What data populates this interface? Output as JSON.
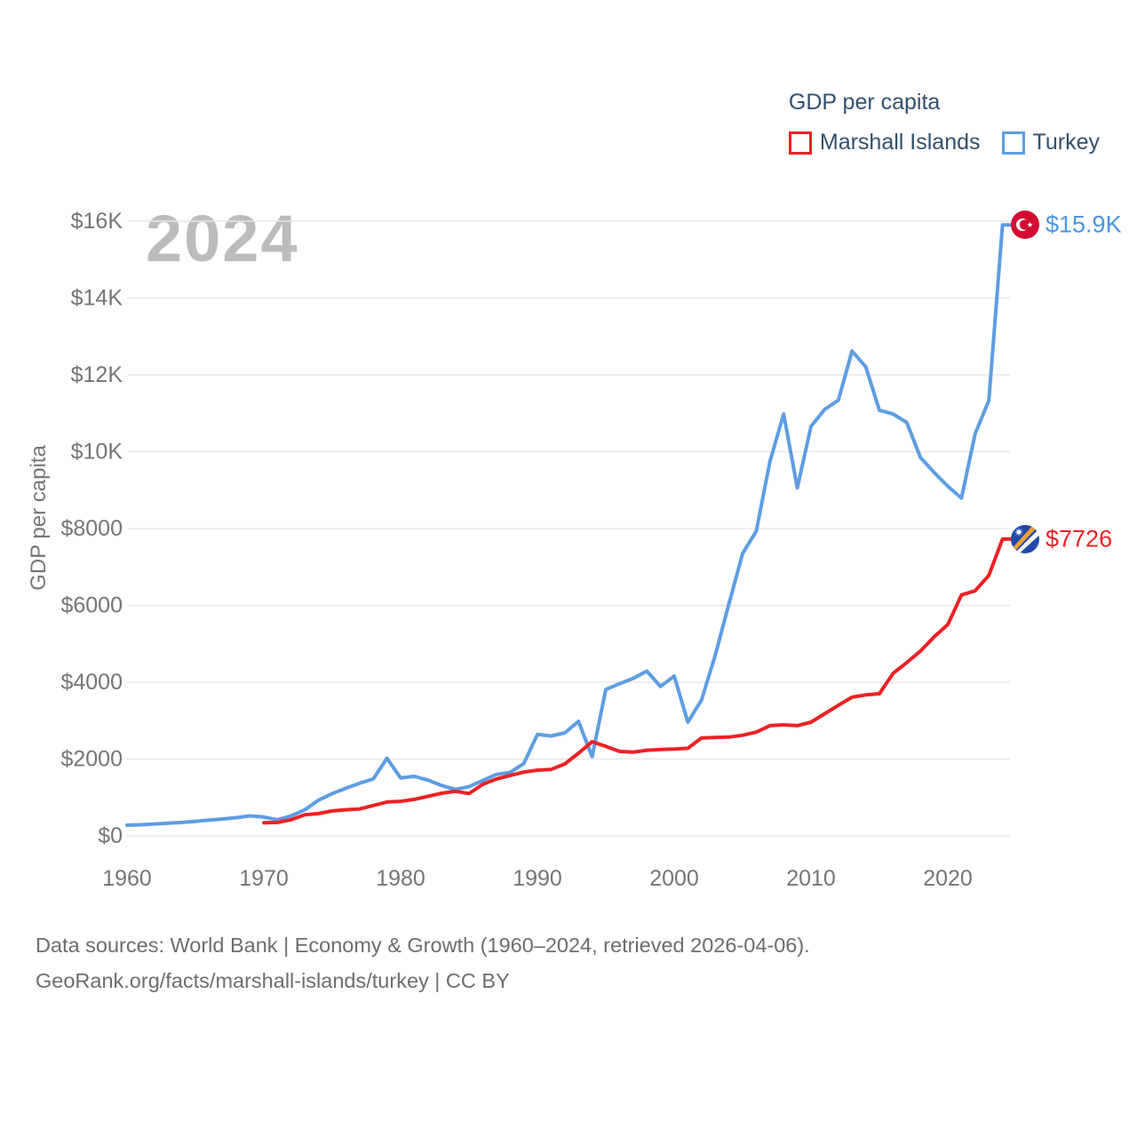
{
  "legend": {
    "title": "GDP per capita",
    "items": [
      {
        "label": "Marshall Islands",
        "color": "#ed2124"
      },
      {
        "label": "Turkey",
        "color": "#5d9de2"
      }
    ]
  },
  "watermark": "2024",
  "y_axis": {
    "title": "GDP per capita",
    "tick_values": [
      0,
      2000,
      4000,
      6000,
      8000,
      10000,
      12000,
      14000,
      16000
    ],
    "tick_labels": [
      "$0",
      "$2000",
      "$4000",
      "$6000",
      "$8000",
      "$10K",
      "$12K",
      "$14K",
      "$16K"
    ]
  },
  "x_axis": {
    "tick_values": [
      1960,
      1970,
      1980,
      1990,
      2000,
      2010,
      2020
    ],
    "tick_labels": [
      "1960",
      "1970",
      "1980",
      "1990",
      "2000",
      "2010",
      "2020"
    ]
  },
  "end_labels": {
    "turkey": {
      "text": "$15.9K",
      "flag": "turkey-flag-icon"
    },
    "marshall": {
      "text": "$7726",
      "flag": "marshall-islands-flag-icon"
    }
  },
  "footer": {
    "line1": "Data sources: World Bank | Economy & Growth (1960–2024, retrieved 2026-04-06).",
    "line2": "GeoRank.org/facts/marshall-islands/turkey | CC BY"
  },
  "colors": {
    "turkey_line": "#5d9de2",
    "marshall_line": "#ed2124",
    "gridline": "#e8e8e8",
    "tick_text": "#757575",
    "turkey_flag_red": "#d40b31",
    "marshall_flag_blue": "#2149a8",
    "marshall_flag_orange": "#f0a030"
  },
  "chart_data": {
    "type": "line",
    "title": "GDP per capita",
    "xlabel": "",
    "ylabel": "GDP per capita",
    "xlim": [
      1960,
      2024
    ],
    "ylim": [
      0,
      16500
    ],
    "grid": "horizontal",
    "legend_position": "top-right",
    "series": [
      {
        "name": "Turkey",
        "color": "#5d9de2",
        "start_year": 1970,
        "end_year": 2024,
        "end_label": "$15.9K",
        "start_year_actual": 1960,
        "values": [
          280,
          290,
          310,
          330,
          350,
          380,
          410,
          440,
          475,
          520,
          490,
          420,
          520,
          680,
          930,
          1100,
          1240,
          1370,
          1480,
          2020,
          1510,
          1550,
          1450,
          1310,
          1210,
          1280,
          1440,
          1600,
          1650,
          1880,
          2640,
          2600,
          2680,
          2980,
          2060,
          3810,
          3960,
          4100,
          4290,
          3890,
          4160,
          2960,
          3540,
          4700,
          6040,
          7350,
          7930,
          9750,
          10980,
          9060,
          10660,
          11100,
          11340,
          12620,
          12210,
          11080,
          10980,
          10760,
          9850,
          9460,
          9100,
          8790,
          10470,
          11330,
          15900
        ]
      },
      {
        "name": "Marshall Islands",
        "color": "#ed2124",
        "start_year": 1970,
        "end_year": 2024,
        "end_label": "$7726",
        "start_year_actual": 1970,
        "values": [
          340,
          350,
          420,
          550,
          580,
          650,
          680,
          700,
          790,
          880,
          900,
          950,
          1030,
          1110,
          1160,
          1100,
          1340,
          1480,
          1570,
          1660,
          1710,
          1730,
          1870,
          2150,
          2450,
          2330,
          2200,
          2180,
          2230,
          2250,
          2260,
          2280,
          2550,
          2560,
          2570,
          2620,
          2700,
          2870,
          2890,
          2870,
          2960,
          3180,
          3400,
          3610,
          3670,
          3700,
          4230,
          4510,
          4810,
          5180,
          5500,
          6270,
          6380,
          6780,
          7726
        ]
      }
    ]
  }
}
